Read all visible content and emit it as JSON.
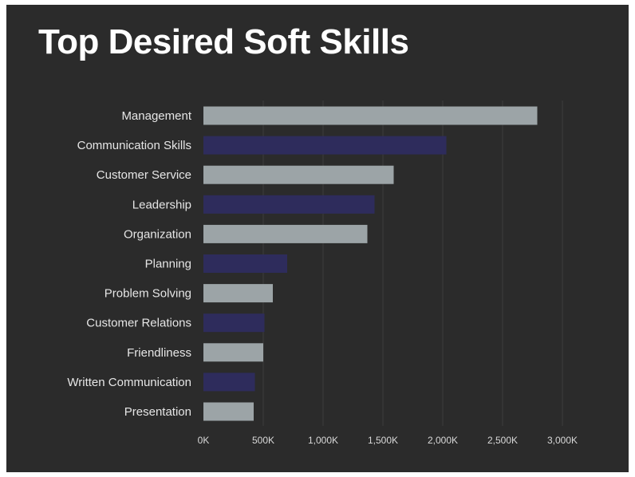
{
  "chart_data": {
    "type": "bar",
    "orientation": "horizontal",
    "title": "Top Desired Soft Skills",
    "xlabel": "",
    "ylabel": "",
    "categories": [
      "Management",
      "Communication Skills",
      "Customer Service",
      "Leadership",
      "Organization",
      "Planning",
      "Problem Solving",
      "Customer Relations",
      "Friendliness",
      "Written Communication",
      "Presentation"
    ],
    "values": [
      2790000,
      2030000,
      1590000,
      1430000,
      1370000,
      700000,
      580000,
      510000,
      500000,
      430000,
      420000
    ],
    "xlim": [
      0,
      3000000
    ],
    "xticks": [
      0,
      500000,
      1000000,
      1500000,
      2000000,
      2500000,
      3000000
    ],
    "xtick_labels": [
      "0K",
      "500K",
      "1,000K",
      "1,500K",
      "2,000K",
      "2,500K",
      "3,000K"
    ],
    "grid": true,
    "colors": {
      "background": "#2b2b2b",
      "bar_primary": "#9ca4a7",
      "bar_secondary": "#2e2c5c"
    }
  }
}
